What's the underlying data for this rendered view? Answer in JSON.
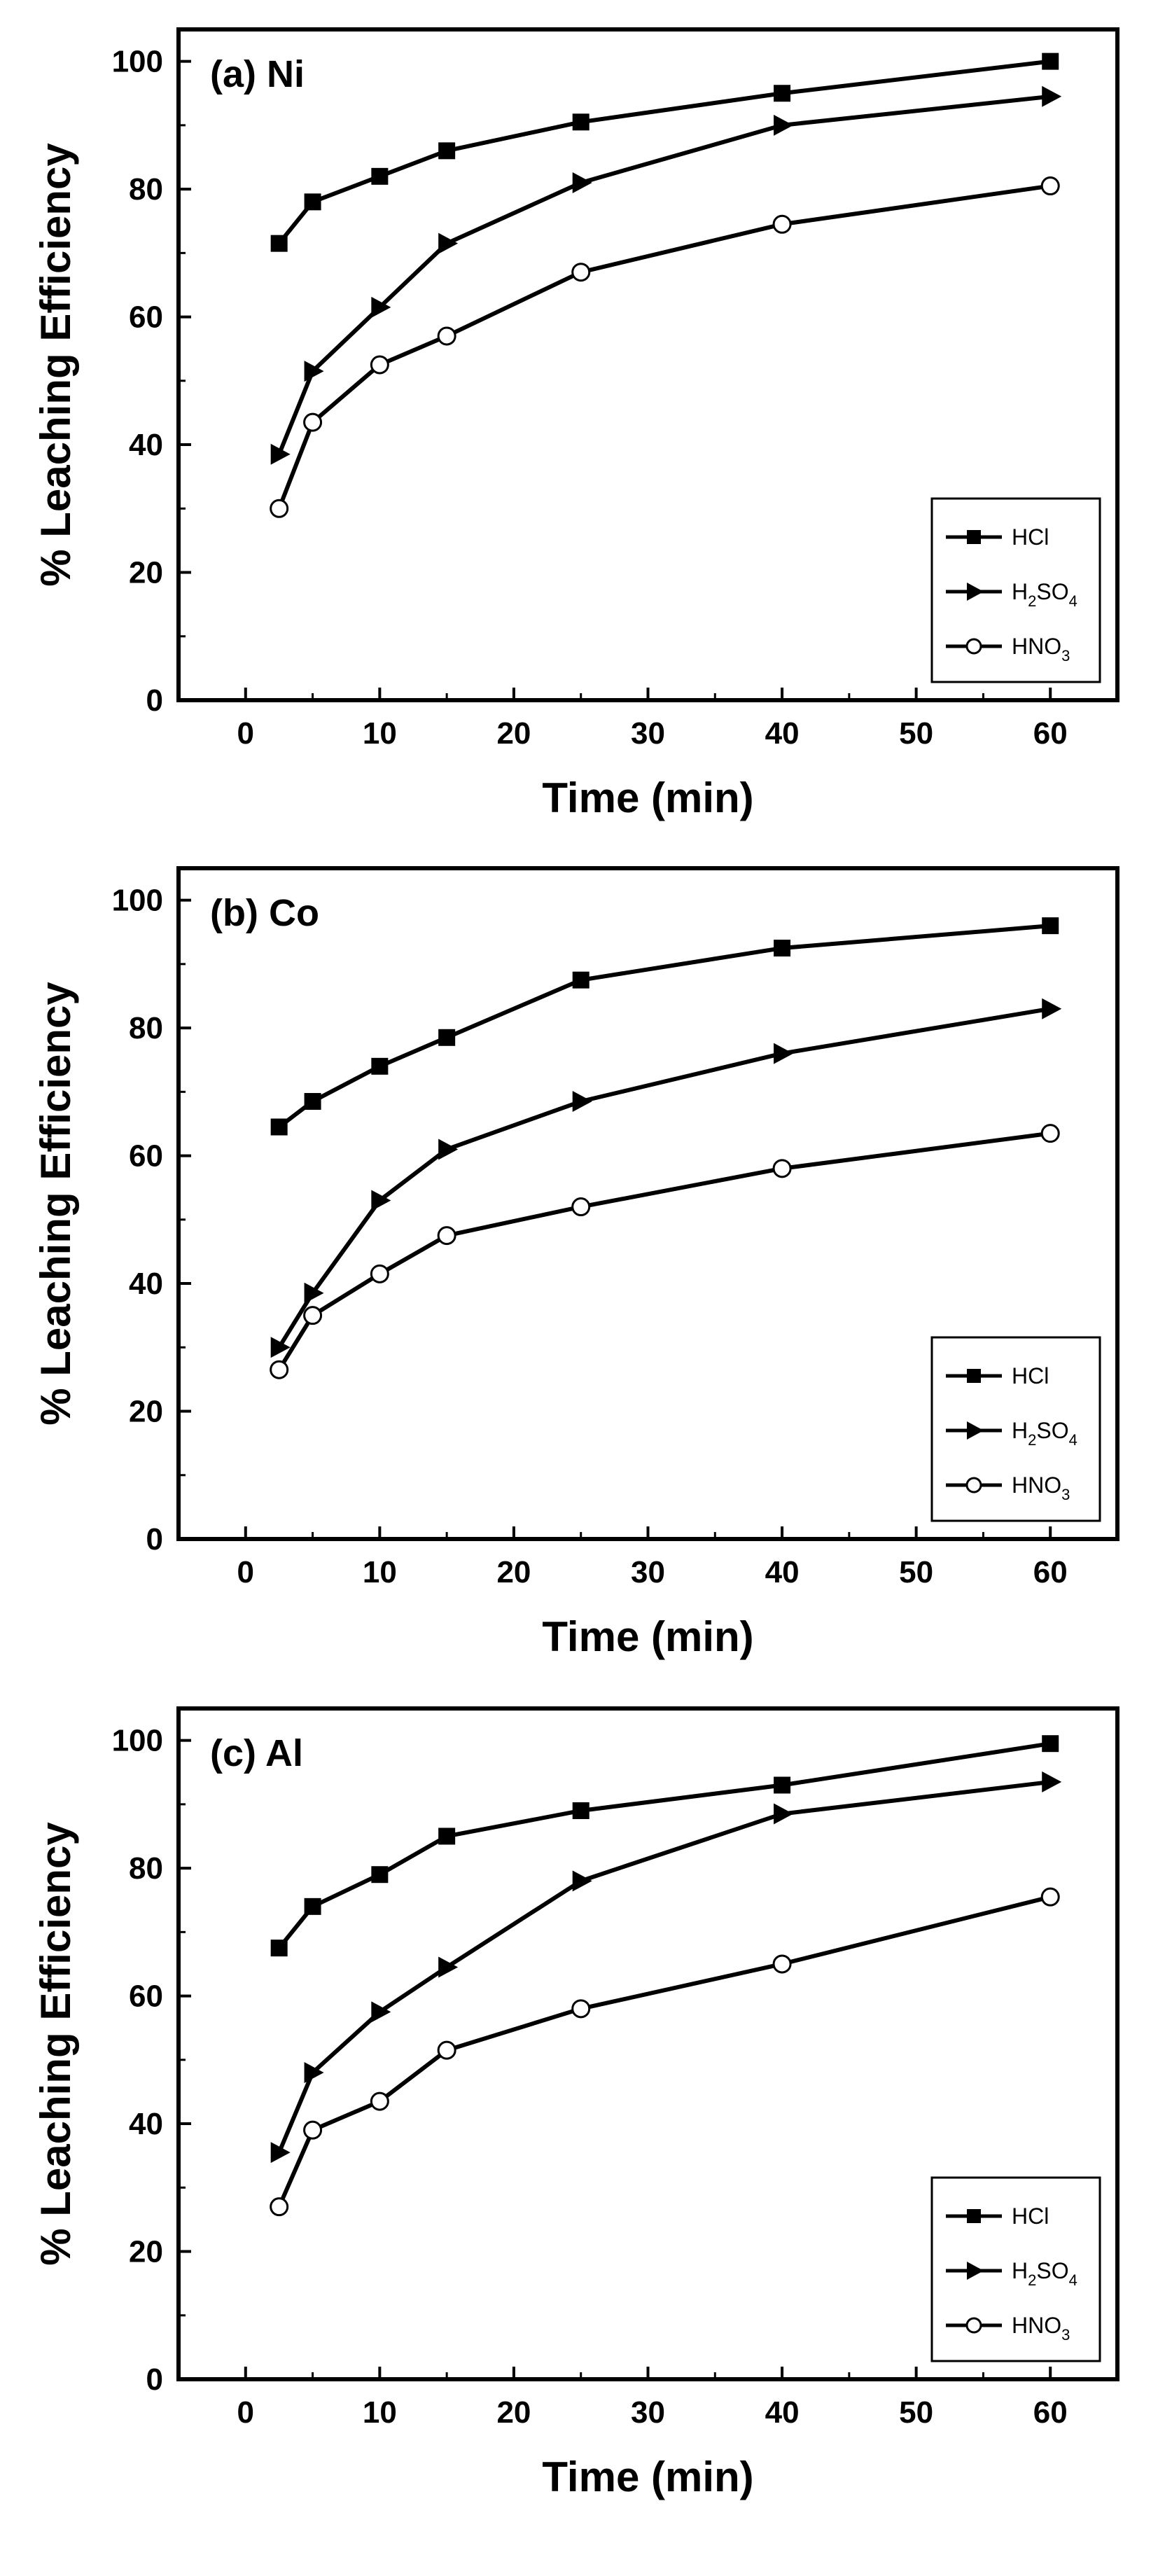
{
  "chart_data": [
    {
      "type": "line",
      "panel_label": "(a) Ni",
      "xlabel": "Time (min)",
      "ylabel": "% Leaching Efficiency",
      "xlim": [
        -5,
        65
      ],
      "ylim": [
        0,
        105
      ],
      "xticks": [
        "0",
        "10",
        "20",
        "30",
        "40",
        "50",
        "60"
      ],
      "yticks": [
        "0",
        "20",
        "40",
        "60",
        "80",
        "100"
      ],
      "x": [
        2.5,
        5,
        10,
        15,
        25,
        40,
        60
      ],
      "legend_position": "lower-right",
      "series": [
        {
          "name": "HCl",
          "label": "HCl",
          "marker": "square",
          "values": [
            71.5,
            78,
            82,
            86,
            90.5,
            95,
            100
          ]
        },
        {
          "name": "H2SO4",
          "label_base": "H",
          "label_sub1": "2",
          "label_mid": "SO",
          "label_sub2": "4",
          "marker": "triangle-right",
          "values": [
            38.5,
            51.5,
            61.5,
            71.5,
            81,
            90,
            94.5
          ]
        },
        {
          "name": "HNO3",
          "label_base": "HNO",
          "label_sub": "3",
          "marker": "circle-open",
          "values": [
            30,
            43.5,
            52.5,
            57,
            67,
            74.5,
            80.5
          ]
        }
      ]
    },
    {
      "type": "line",
      "panel_label": "(b) Co",
      "xlabel": "Time (min)",
      "ylabel": "% Leaching Efficiency",
      "xlim": [
        -5,
        65
      ],
      "ylim": [
        0,
        105
      ],
      "xticks": [
        "0",
        "10",
        "20",
        "30",
        "40",
        "50",
        "60"
      ],
      "yticks": [
        "0",
        "20",
        "40",
        "60",
        "80",
        "100"
      ],
      "x": [
        2.5,
        5,
        10,
        15,
        25,
        40,
        60
      ],
      "legend_position": "lower-right",
      "series": [
        {
          "name": "HCl",
          "label": "HCl",
          "marker": "square",
          "values": [
            64.5,
            68.5,
            74,
            78.5,
            87.5,
            92.5,
            96
          ]
        },
        {
          "name": "H2SO4",
          "label_base": "H",
          "label_sub1": "2",
          "label_mid": "SO",
          "label_sub2": "4",
          "marker": "triangle-right",
          "values": [
            30,
            38.5,
            53,
            61,
            68.5,
            76,
            83
          ]
        },
        {
          "name": "HNO3",
          "label_base": "HNO",
          "label_sub": "3",
          "marker": "circle-open",
          "values": [
            26.5,
            35,
            41.5,
            47.5,
            52,
            58,
            63.5
          ]
        }
      ]
    },
    {
      "type": "line",
      "panel_label": "(c) Al",
      "xlabel": "Time (min)",
      "ylabel": "% Leaching Efficiency",
      "xlim": [
        -5,
        65
      ],
      "ylim": [
        0,
        105
      ],
      "xticks": [
        "0",
        "10",
        "20",
        "30",
        "40",
        "50",
        "60"
      ],
      "yticks": [
        "0",
        "20",
        "40",
        "60",
        "80",
        "100"
      ],
      "x": [
        2.5,
        5,
        10,
        15,
        25,
        40,
        60
      ],
      "legend_position": "lower-right",
      "series": [
        {
          "name": "HCl",
          "label": "HCl",
          "marker": "square",
          "values": [
            67.5,
            74,
            79,
            85,
            89,
            93,
            99.5
          ]
        },
        {
          "name": "H2SO4",
          "label_base": "H",
          "label_sub1": "2",
          "label_mid": "SO",
          "label_sub2": "4",
          "marker": "triangle-right",
          "values": [
            35.5,
            48,
            57.5,
            64.5,
            78,
            88.5,
            93.5
          ]
        },
        {
          "name": "HNO3",
          "label_base": "HNO",
          "label_sub": "3",
          "marker": "circle-open",
          "values": [
            27,
            39,
            43.5,
            51.5,
            58,
            65,
            75.5
          ]
        }
      ]
    }
  ]
}
